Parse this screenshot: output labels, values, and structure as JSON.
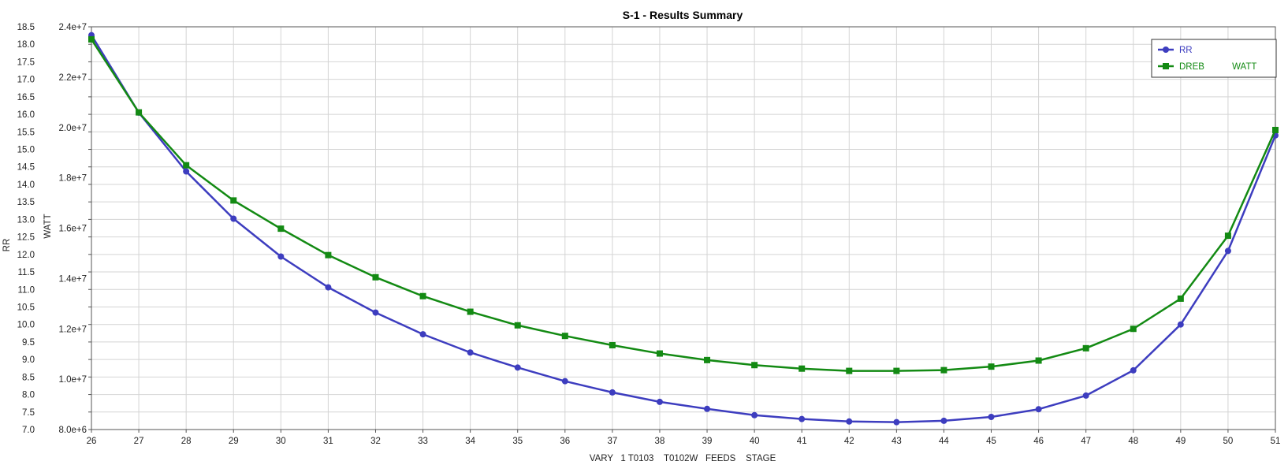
{
  "chart_data": {
    "type": "line",
    "title": "S-1 - Results Summary",
    "xlabel": "VARY   1 T0103    T0102W   FEEDS    STAGE",
    "ylabel_left": "RR",
    "ylabel_right": "WATT",
    "x": [
      26,
      27,
      28,
      29,
      30,
      31,
      32,
      33,
      34,
      35,
      36,
      37,
      38,
      39,
      40,
      41,
      42,
      43,
      44,
      45,
      46,
      47,
      48,
      49,
      50,
      51
    ],
    "xlim": [
      26,
      51
    ],
    "ylim_left": [
      7.0,
      18.5
    ],
    "ylim_right": [
      8000000,
      24000000
    ],
    "y_left_ticks": [
      "7.0",
      "7.5",
      "8.0",
      "8.5",
      "9.0",
      "9.5",
      "10.0",
      "10.5",
      "11.0",
      "11.5",
      "12.0",
      "12.5",
      "13.0",
      "13.5",
      "14.0",
      "14.5",
      "15.0",
      "15.5",
      "16.0",
      "16.5",
      "17.0",
      "17.5",
      "18.0",
      "18.5"
    ],
    "y_right_ticks": [
      "8.0e+6",
      "1.0e+7",
      "1.2e+7",
      "1.4e+7",
      "1.6e+7",
      "1.8e+7",
      "2.0e+7",
      "2.2e+7",
      "2.4e+7"
    ],
    "grid": true,
    "legend_position": "top-right",
    "series": [
      {
        "name": "RR",
        "axis": "left",
        "color": "#3d3dbf",
        "marker": "circle",
        "values": [
          18.26,
          16.05,
          14.37,
          13.02,
          11.94,
          11.06,
          10.34,
          9.72,
          9.2,
          8.77,
          8.38,
          8.06,
          7.79,
          7.59,
          7.41,
          7.3,
          7.23,
          7.21,
          7.25,
          7.36,
          7.58,
          7.97,
          8.69,
          10.0,
          12.1,
          15.4
        ]
      },
      {
        "name": "DREB           WATT",
        "axis": "right",
        "color": "#138a13",
        "marker": "square",
        "values": [
          23500000.0,
          20600000.0,
          18500000.0,
          17100000.0,
          15980000.0,
          14930000.0,
          14050000.0,
          13300000.0,
          12680000.0,
          12140000.0,
          11720000.0,
          11350000.0,
          11020000.0,
          10760000.0,
          10560000.0,
          10420000.0,
          10330000.0,
          10330000.0,
          10360000.0,
          10500000.0,
          10740000.0,
          11230000.0,
          12000000.0,
          13200000.0,
          15700000.0,
          19900000.0
        ]
      }
    ]
  }
}
